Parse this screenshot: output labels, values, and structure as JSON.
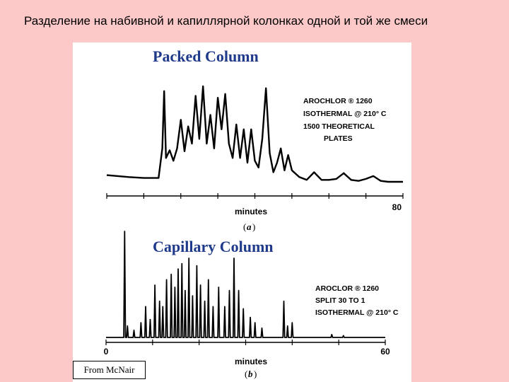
{
  "slide": {
    "title": "Разделение на набивной и капиллярной колонках одной и той же смеси"
  },
  "credit": "From McNair",
  "colors": {
    "background": "#fcc8c8",
    "chart_title": "#1f3a8a",
    "trace": "#000000"
  },
  "chart_data": [
    {
      "type": "line",
      "title": "Packed Column",
      "panel": "a",
      "xlabel": "minutes",
      "x_tick_labels": [
        "80"
      ],
      "xlim": [
        0,
        80
      ],
      "annotation": [
        "AROCHLOR ®    1260",
        "ISOTHERMAL @ 210° C",
        "1500 THEORETICAL",
        "PLATES"
      ],
      "series": [
        {
          "x": [
            0,
            6,
            10,
            14,
            15,
            15.5,
            16,
            17,
            18,
            19,
            20,
            21,
            22,
            23,
            24,
            25,
            26,
            27,
            28,
            29,
            30,
            31,
            32,
            33,
            34,
            35,
            36,
            37,
            38,
            39,
            40,
            41,
            42,
            43,
            44,
            45,
            46,
            47,
            48,
            49,
            50,
            52,
            54,
            56,
            58,
            60,
            62,
            64,
            66,
            68,
            70,
            72,
            74,
            76,
            78,
            80
          ],
          "y": [
            0.07,
            0.05,
            0.04,
            0.04,
            0.35,
            0.95,
            0.25,
            0.33,
            0.22,
            0.35,
            0.65,
            0.32,
            0.58,
            0.4,
            0.9,
            0.45,
            1.0,
            0.4,
            0.7,
            0.35,
            0.88,
            0.55,
            0.92,
            0.4,
            0.25,
            0.6,
            0.25,
            0.55,
            0.2,
            0.55,
            0.22,
            0.15,
            0.45,
            0.98,
            0.3,
            0.1,
            0.2,
            0.35,
            0.12,
            0.28,
            0.12,
            0.05,
            0.02,
            0.1,
            0.02,
            0.02,
            0.03,
            0.09,
            0.02,
            0.01,
            0.03,
            0.06,
            0.01,
            0.0,
            0.0,
            0.0
          ]
        }
      ]
    },
    {
      "type": "line",
      "title": "Capillary Column",
      "panel": "b",
      "xlabel": "minutes",
      "x_tick_labels": [
        "0",
        "60"
      ],
      "xlim": [
        0,
        60
      ],
      "annotation": [
        "AROCLOR ®      1260",
        "SPLIT 30 TO 1",
        "ISOTHERMAL @ 210° C"
      ],
      "peaks": [
        {
          "x": 4.0,
          "height": 1.0
        },
        {
          "x": 4.6,
          "height": 0.12
        },
        {
          "x": 6.0,
          "height": 0.08
        },
        {
          "x": 7.5,
          "height": 0.15
        },
        {
          "x": 8.5,
          "height": 0.3
        },
        {
          "x": 9.5,
          "height": 0.18
        },
        {
          "x": 10.5,
          "height": 0.5
        },
        {
          "x": 11.5,
          "height": 0.35
        },
        {
          "x": 12.2,
          "height": 0.3
        },
        {
          "x": 13.0,
          "height": 0.55
        },
        {
          "x": 14.0,
          "height": 0.6
        },
        {
          "x": 14.8,
          "height": 0.48
        },
        {
          "x": 15.5,
          "height": 0.65
        },
        {
          "x": 16.3,
          "height": 0.7
        },
        {
          "x": 17.0,
          "height": 0.45
        },
        {
          "x": 17.8,
          "height": 0.75
        },
        {
          "x": 18.6,
          "height": 0.4
        },
        {
          "x": 19.5,
          "height": 0.68
        },
        {
          "x": 20.3,
          "height": 0.5
        },
        {
          "x": 21.2,
          "height": 0.35
        },
        {
          "x": 22.0,
          "height": 0.55
        },
        {
          "x": 23.0,
          "height": 0.3
        },
        {
          "x": 24.2,
          "height": 0.48
        },
        {
          "x": 25.5,
          "height": 0.3
        },
        {
          "x": 26.5,
          "height": 0.45
        },
        {
          "x": 27.5,
          "height": 0.75
        },
        {
          "x": 28.5,
          "height": 0.45
        },
        {
          "x": 29.5,
          "height": 0.28
        },
        {
          "x": 31.0,
          "height": 0.2
        },
        {
          "x": 32.0,
          "height": 0.15
        },
        {
          "x": 33.5,
          "height": 0.1
        },
        {
          "x": 38.2,
          "height": 0.35
        },
        {
          "x": 39.0,
          "height": 0.12
        },
        {
          "x": 40.0,
          "height": 0.15
        },
        {
          "x": 48.5,
          "height": 0.04
        },
        {
          "x": 51.0,
          "height": 0.03
        }
      ]
    }
  ]
}
